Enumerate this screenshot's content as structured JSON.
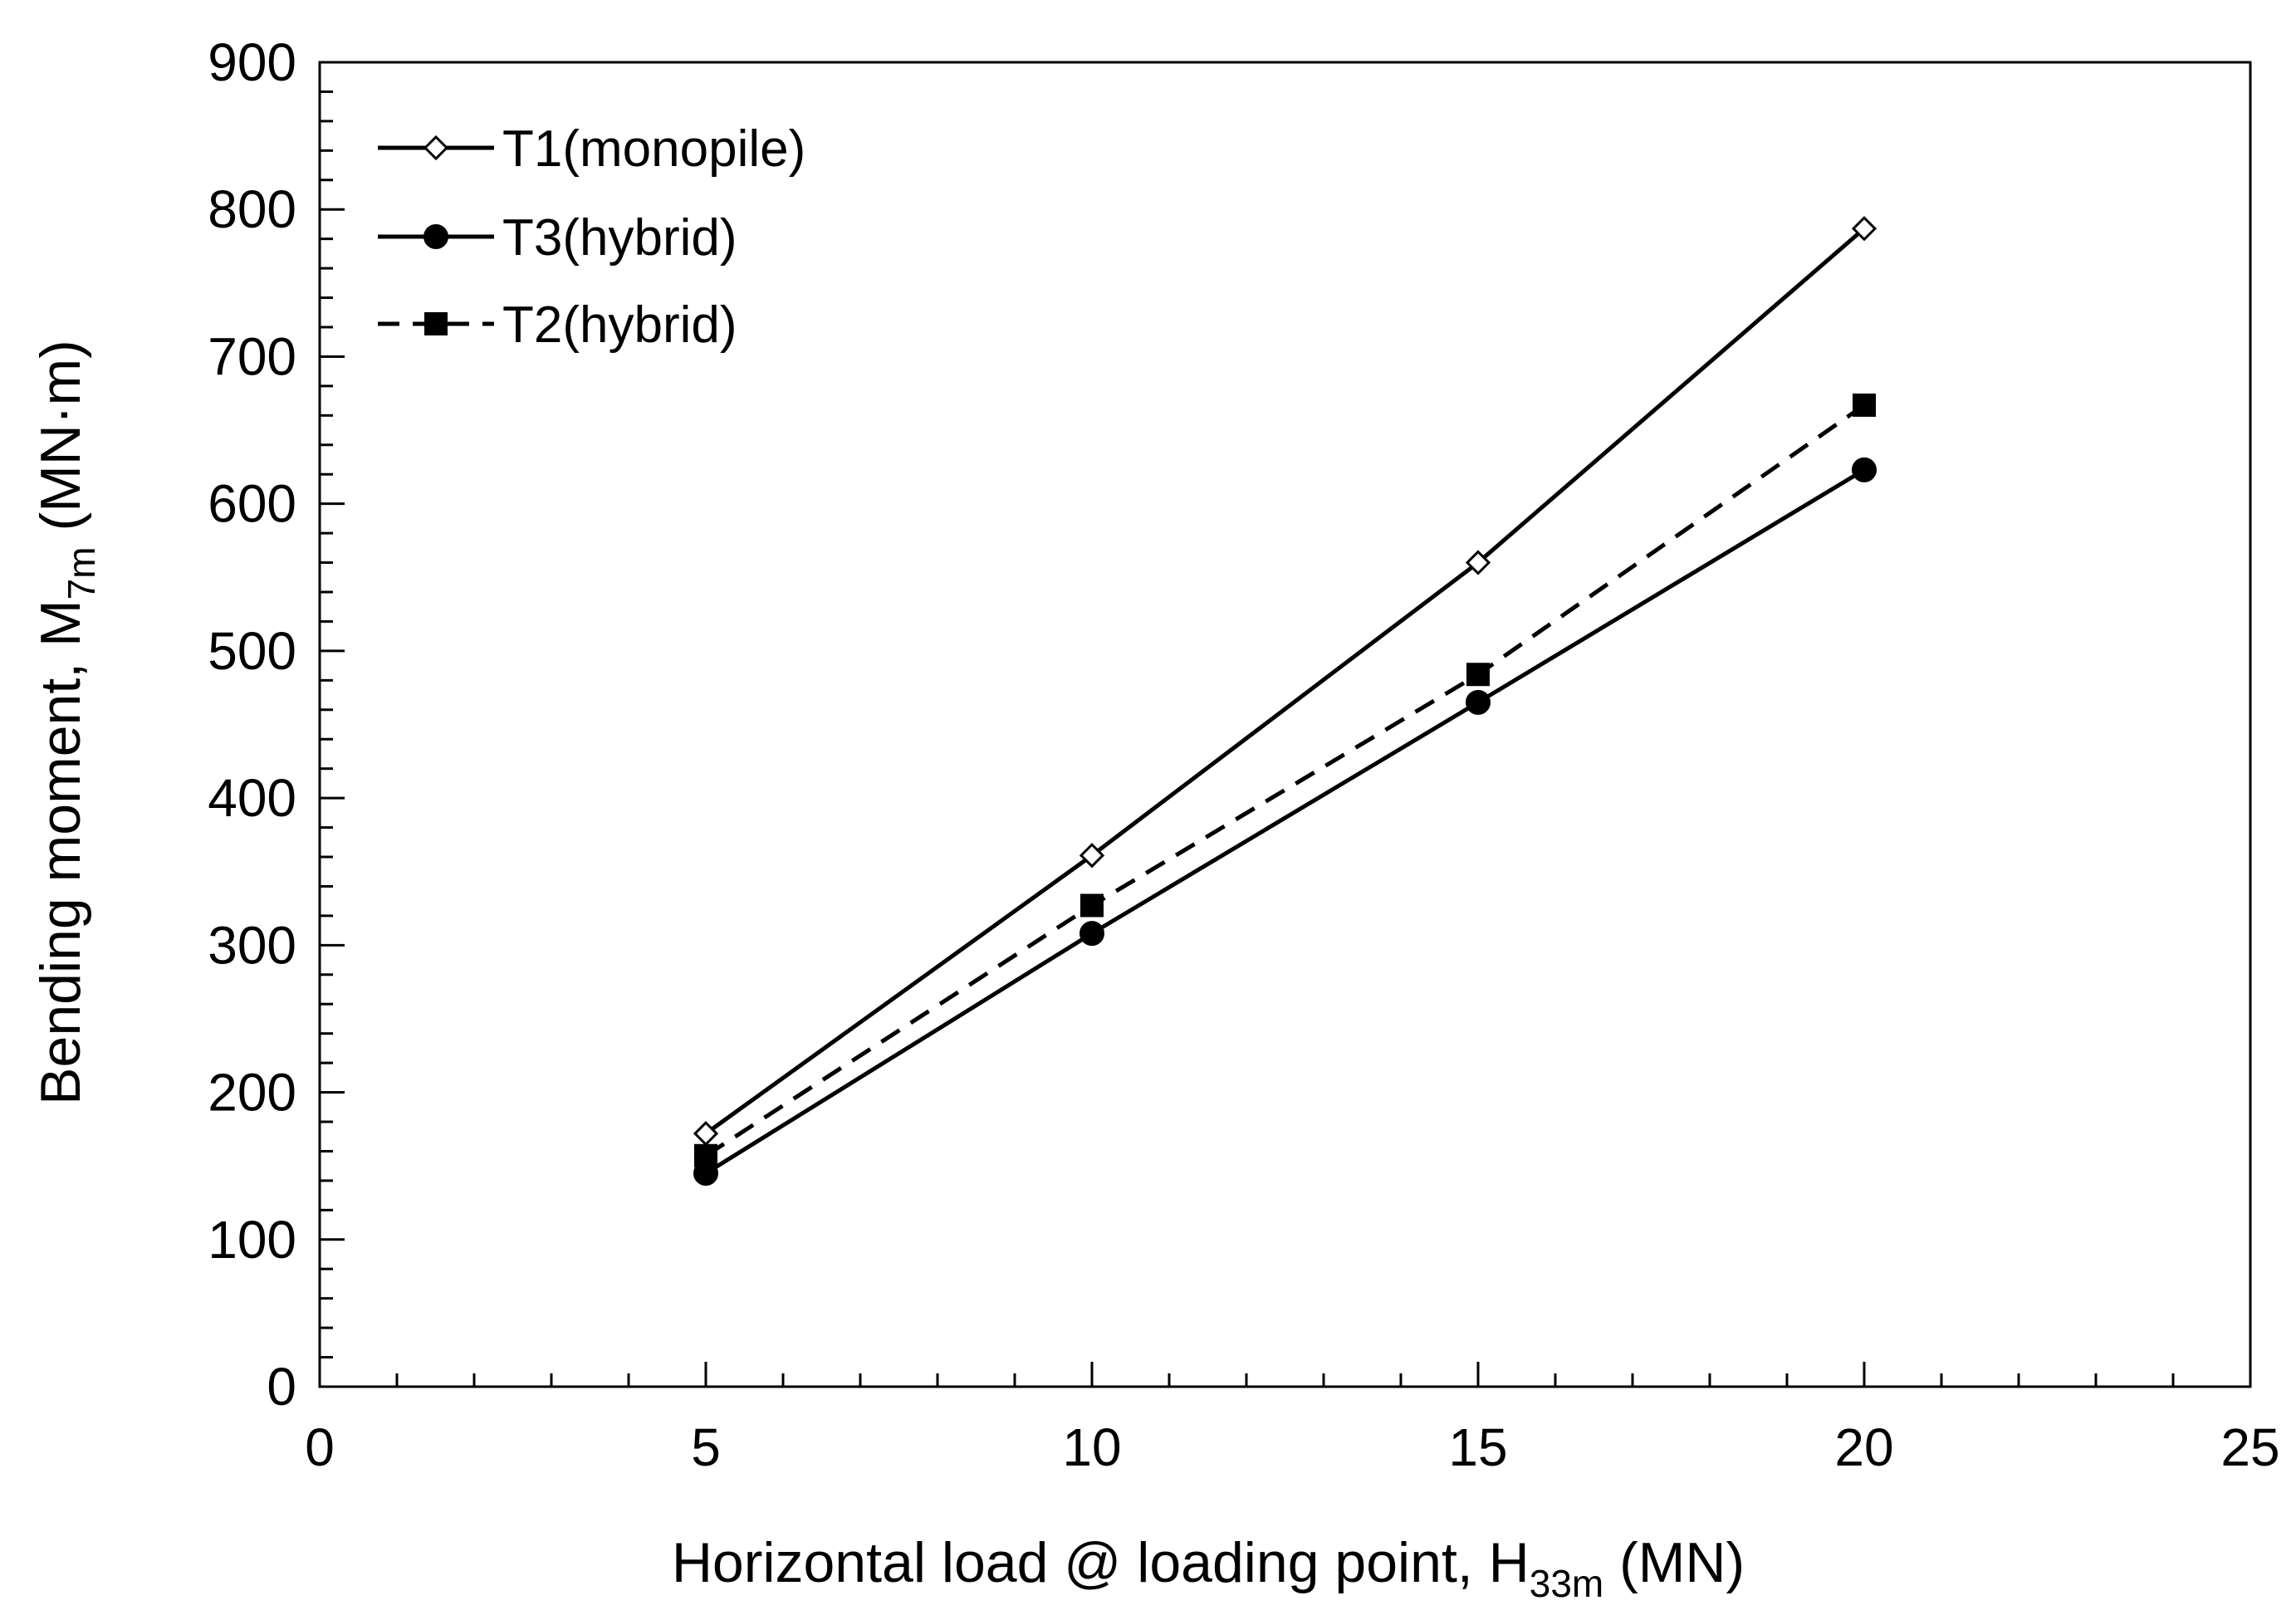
{
  "chart_data": {
    "type": "line",
    "title": "",
    "xlabel": {
      "prefix": "Horizontal load @ loading point, H",
      "subscript": "33m",
      "suffix": " (MN)"
    },
    "ylabel": {
      "prefix": "Bending moment, M",
      "subscript": "7m",
      "suffix": " (MN·m)"
    },
    "xlim": [
      0,
      25
    ],
    "ylim": [
      0,
      900
    ],
    "x_ticks": [
      0,
      5,
      10,
      15,
      20,
      25
    ],
    "y_ticks": [
      0,
      100,
      200,
      300,
      400,
      500,
      600,
      700,
      800,
      900
    ],
    "x_minor_step": 1,
    "y_minor_step": 20,
    "grid": false,
    "legend_position": "top-left",
    "series": [
      {
        "name": "T1(monopile)",
        "marker": "open-diamond",
        "line_style": "solid",
        "color": "#000000",
        "x": [
          5,
          10,
          15,
          20
        ],
        "y": [
          172,
          361,
          560,
          787
        ]
      },
      {
        "name": "T3(hybrid)",
        "marker": "filled-circle",
        "line_style": "solid",
        "color": "#000000",
        "x": [
          5,
          10,
          15,
          20
        ],
        "y": [
          145,
          308,
          465,
          623
        ]
      },
      {
        "name": "T2(hybrid)",
        "marker": "filled-square",
        "line_style": "dashed",
        "color": "#000000",
        "x": [
          5,
          10,
          15,
          20
        ],
        "y": [
          157,
          327,
          484,
          667
        ]
      }
    ]
  }
}
